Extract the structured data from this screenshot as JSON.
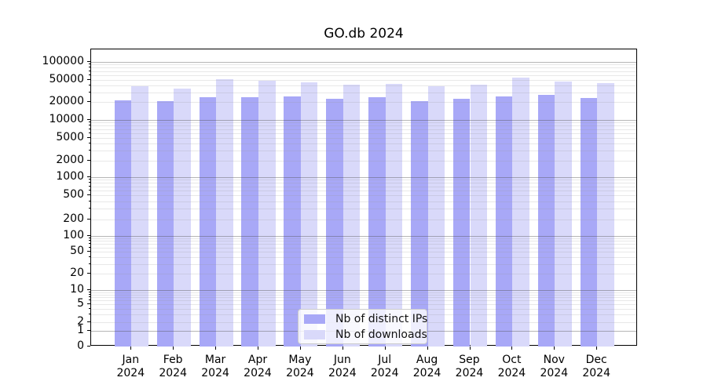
{
  "chart_data": {
    "type": "bar",
    "title": "GO.db 2024",
    "xlabel": "",
    "ylabel": "",
    "yscale": "log",
    "ylim": [
      0,
      160000
    ],
    "grid": "horizontal major+minor",
    "legend_position": "lower-center-inside",
    "categories": [
      "Jan 2024",
      "Feb 2024",
      "Mar 2024",
      "Apr 2024",
      "May 2024",
      "Jun 2024",
      "Jul 2024",
      "Aug 2024",
      "Sep 2024",
      "Oct 2024",
      "Nov 2024",
      "Dec 2024"
    ],
    "yticks": [
      100000,
      50000,
      20000,
      10000,
      5000,
      2000,
      1000,
      500,
      200,
      100,
      50,
      20,
      10,
      5,
      2,
      1,
      0
    ],
    "series": [
      {
        "name": "Nb of distinct IPs",
        "color": "#a8a8f7",
        "values": [
          21500,
          20500,
          24500,
          24000,
          25000,
          23000,
          24000,
          21000,
          23000,
          25500,
          27000,
          23500
        ]
      },
      {
        "name": "Nb of downloads",
        "color": "#d9d9fa",
        "values": [
          38500,
          34500,
          51000,
          48000,
          46000,
          41500,
          42500,
          38000,
          40500,
          54000,
          47000,
          43500
        ]
      }
    ]
  }
}
